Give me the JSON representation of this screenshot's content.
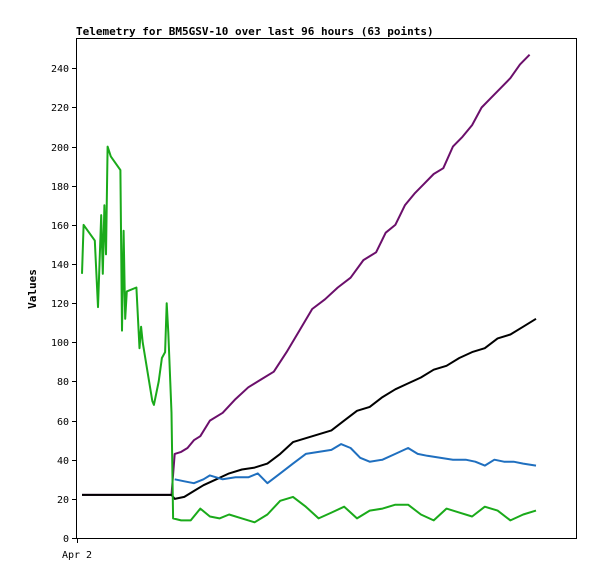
{
  "chart_data": {
    "type": "line",
    "title": "Telemetry for BM5GSV-10 over last 96 hours (63 points)",
    "ylabel": "Values",
    "xlabel": "",
    "x_tick_labels": [
      "Apr 2"
    ],
    "ylim": [
      0,
      255
    ],
    "y_ticks": [
      0,
      20,
      40,
      60,
      80,
      100,
      120,
      140,
      160,
      180,
      200,
      220,
      240
    ],
    "grid": false,
    "legend": "none",
    "series": [
      {
        "color": "#6b0f6b",
        "points": [
          [
            0,
            22
          ],
          [
            6,
            22
          ],
          [
            12,
            22
          ],
          [
            18,
            22
          ],
          [
            24,
            22
          ],
          [
            28,
            22
          ],
          [
            29,
            43
          ],
          [
            31,
            44
          ],
          [
            33,
            46
          ],
          [
            35,
            50
          ],
          [
            37,
            52
          ],
          [
            40,
            60
          ],
          [
            44,
            64
          ],
          [
            48,
            71
          ],
          [
            52,
            77
          ],
          [
            56,
            81
          ],
          [
            60,
            85
          ],
          [
            64,
            95
          ],
          [
            68,
            106
          ],
          [
            72,
            117
          ],
          [
            76,
            122
          ],
          [
            80,
            128
          ],
          [
            84,
            133
          ],
          [
            88,
            142
          ],
          [
            92,
            146
          ],
          [
            95,
            156
          ],
          [
            98,
            160
          ],
          [
            101,
            170
          ],
          [
            104,
            176
          ],
          [
            107,
            181
          ],
          [
            110,
            186
          ],
          [
            113,
            189
          ],
          [
            116,
            200
          ],
          [
            119,
            205
          ],
          [
            122,
            211
          ],
          [
            125,
            220
          ],
          [
            128,
            225
          ],
          [
            131,
            230
          ],
          [
            134,
            235
          ],
          [
            137,
            242
          ],
          [
            140,
            247
          ]
        ]
      },
      {
        "color": "#000000",
        "points": [
          [
            0,
            22
          ],
          [
            10,
            22
          ],
          [
            20,
            22
          ],
          [
            28,
            22
          ],
          [
            29,
            20
          ],
          [
            32,
            21
          ],
          [
            35,
            24
          ],
          [
            38,
            27
          ],
          [
            42,
            30
          ],
          [
            46,
            33
          ],
          [
            50,
            35
          ],
          [
            54,
            36
          ],
          [
            58,
            38
          ],
          [
            62,
            43
          ],
          [
            66,
            49
          ],
          [
            70,
            51
          ],
          [
            74,
            53
          ],
          [
            78,
            55
          ],
          [
            82,
            60
          ],
          [
            86,
            65
          ],
          [
            90,
            67
          ],
          [
            94,
            72
          ],
          [
            98,
            76
          ],
          [
            102,
            79
          ],
          [
            106,
            82
          ],
          [
            110,
            86
          ],
          [
            114,
            88
          ],
          [
            118,
            92
          ],
          [
            122,
            95
          ],
          [
            126,
            97
          ],
          [
            130,
            102
          ],
          [
            134,
            104
          ],
          [
            138,
            108
          ],
          [
            142,
            112
          ]
        ]
      },
      {
        "color": "#1f6fbf",
        "points": [
          [
            29,
            30
          ],
          [
            32,
            29
          ],
          [
            35,
            28
          ],
          [
            38,
            30
          ],
          [
            40,
            32
          ],
          [
            44,
            30
          ],
          [
            48,
            31
          ],
          [
            52,
            31
          ],
          [
            55,
            33
          ],
          [
            58,
            28
          ],
          [
            62,
            33
          ],
          [
            66,
            38
          ],
          [
            70,
            43
          ],
          [
            74,
            44
          ],
          [
            78,
            45
          ],
          [
            81,
            48
          ],
          [
            84,
            46
          ],
          [
            87,
            41
          ],
          [
            90,
            39
          ],
          [
            94,
            40
          ],
          [
            98,
            43
          ],
          [
            102,
            46
          ],
          [
            105,
            43
          ],
          [
            108,
            42
          ],
          [
            112,
            41
          ],
          [
            116,
            40
          ],
          [
            120,
            40
          ],
          [
            123,
            39
          ],
          [
            126,
            37
          ],
          [
            129,
            40
          ],
          [
            132,
            39
          ],
          [
            135,
            39
          ],
          [
            138,
            38
          ],
          [
            142,
            37
          ]
        ]
      },
      {
        "color": "#1aaa1a",
        "points": [
          [
            0,
            135
          ],
          [
            0.5,
            160
          ],
          [
            4,
            152
          ],
          [
            5,
            118
          ],
          [
            6,
            165
          ],
          [
            6.5,
            135
          ],
          [
            7,
            170
          ],
          [
            7.5,
            145
          ],
          [
            8,
            200
          ],
          [
            9,
            195
          ],
          [
            12,
            188
          ],
          [
            12.5,
            106
          ],
          [
            13,
            157
          ],
          [
            13.5,
            112
          ],
          [
            14,
            126
          ],
          [
            17,
            128
          ],
          [
            18,
            97
          ],
          [
            18.5,
            108
          ],
          [
            19,
            100
          ],
          [
            22,
            70
          ],
          [
            22.5,
            68
          ],
          [
            24,
            80
          ],
          [
            25,
            92
          ],
          [
            26,
            95
          ],
          [
            26.5,
            120
          ],
          [
            27,
            105
          ],
          [
            28,
            64
          ],
          [
            28.5,
            10
          ],
          [
            31,
            9
          ],
          [
            34,
            9
          ],
          [
            37,
            15
          ],
          [
            40,
            11
          ],
          [
            43,
            10
          ],
          [
            46,
            12
          ],
          [
            50,
            10
          ],
          [
            54,
            8
          ],
          [
            58,
            12
          ],
          [
            62,
            19
          ],
          [
            66,
            21
          ],
          [
            70,
            16
          ],
          [
            74,
            10
          ],
          [
            78,
            13
          ],
          [
            82,
            16
          ],
          [
            86,
            10
          ],
          [
            90,
            14
          ],
          [
            94,
            15
          ],
          [
            98,
            17
          ],
          [
            102,
            17
          ],
          [
            106,
            12
          ],
          [
            110,
            9
          ],
          [
            114,
            15
          ],
          [
            118,
            13
          ],
          [
            122,
            11
          ],
          [
            126,
            16
          ],
          [
            130,
            14
          ],
          [
            134,
            9
          ],
          [
            138,
            12
          ],
          [
            142,
            14
          ]
        ]
      }
    ]
  }
}
